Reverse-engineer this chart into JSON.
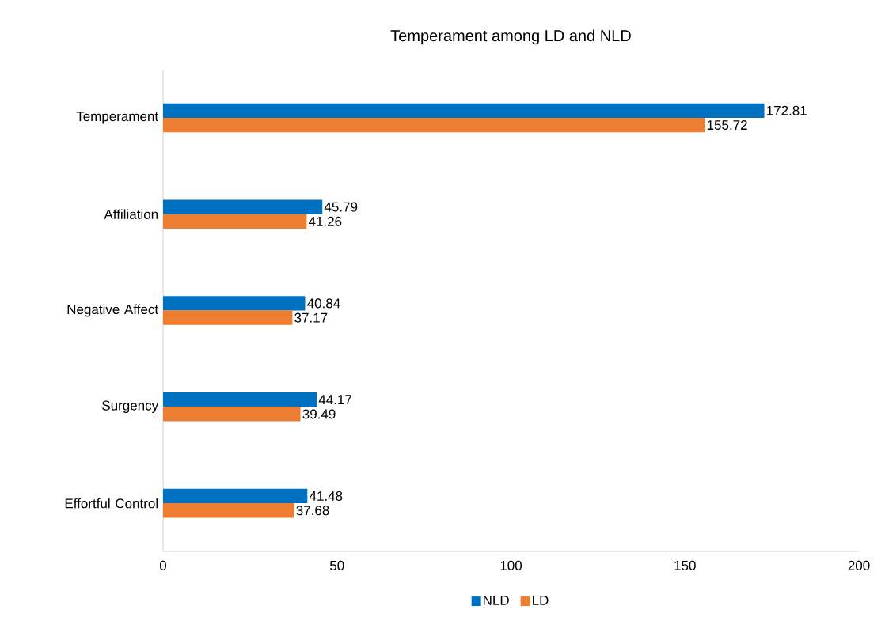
{
  "chart_data": {
    "type": "bar",
    "orientation": "horizontal",
    "title": "Temperament among LD and NLD",
    "categories": [
      "Temperament",
      "Affiliation",
      "Negative Affect",
      "Surgency",
      "Effortful Control"
    ],
    "series": [
      {
        "name": "NLD",
        "color": "#0070c0",
        "values": [
          172.81,
          45.79,
          40.84,
          44.17,
          41.48
        ]
      },
      {
        "name": "LD",
        "color": "#ed7d31",
        "values": [
          155.72,
          41.26,
          37.17,
          39.49,
          37.68
        ]
      }
    ],
    "xlim": [
      0,
      200
    ],
    "xticks": [
      0,
      50,
      100,
      150,
      200
    ],
    "grid": false,
    "legend": "bottom",
    "data_labels": true
  }
}
